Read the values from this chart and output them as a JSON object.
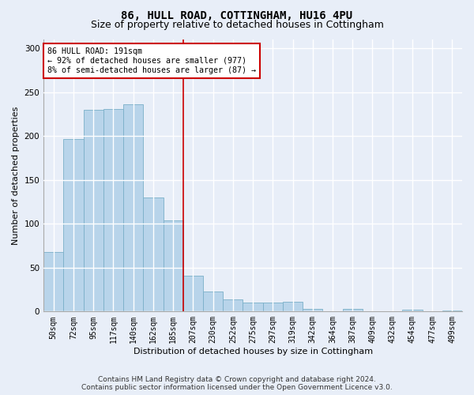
{
  "title1": "86, HULL ROAD, COTTINGHAM, HU16 4PU",
  "title2": "Size of property relative to detached houses in Cottingham",
  "xlabel": "Distribution of detached houses by size in Cottingham",
  "ylabel": "Number of detached properties",
  "footnote": "Contains HM Land Registry data © Crown copyright and database right 2024.\nContains public sector information licensed under the Open Government Licence v3.0.",
  "bar_labels": [
    "50sqm",
    "72sqm",
    "95sqm",
    "117sqm",
    "140sqm",
    "162sqm",
    "185sqm",
    "207sqm",
    "230sqm",
    "252sqm",
    "275sqm",
    "297sqm",
    "319sqm",
    "342sqm",
    "364sqm",
    "387sqm",
    "409sqm",
    "432sqm",
    "454sqm",
    "477sqm",
    "499sqm"
  ],
  "bar_values": [
    68,
    197,
    230,
    231,
    236,
    130,
    104,
    41,
    23,
    14,
    10,
    10,
    11,
    3,
    0,
    3,
    0,
    0,
    2,
    0,
    1
  ],
  "bar_color": "#b8d4ea",
  "bar_edge_color": "#7aafc8",
  "bg_color": "#e8eef8",
  "grid_color": "#d0d8e8",
  "annotation_text": "86 HULL ROAD: 191sqm\n← 92% of detached houses are smaller (977)\n8% of semi-detached houses are larger (87) →",
  "vline_bar_index": 6,
  "box_color": "#cc0000",
  "ylim": [
    0,
    310
  ],
  "yticks": [
    0,
    50,
    100,
    150,
    200,
    250,
    300
  ],
  "title1_fontsize": 10,
  "title2_fontsize": 9,
  "xlabel_fontsize": 8,
  "ylabel_fontsize": 8,
  "tick_fontsize": 7,
  "footnote_fontsize": 6.5
}
